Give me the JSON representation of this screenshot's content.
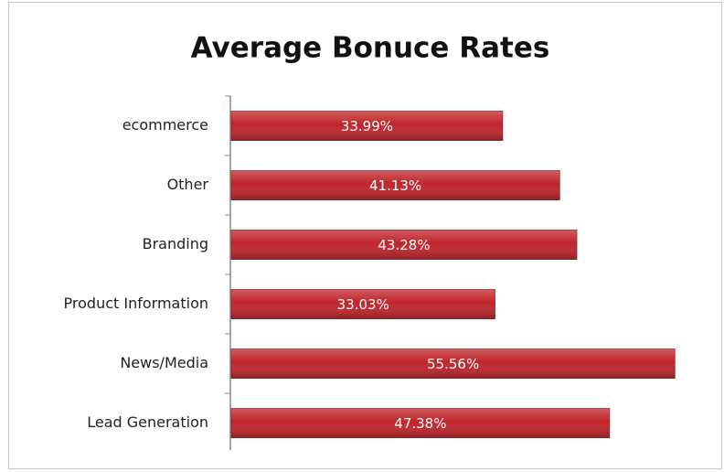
{
  "chart_data": {
    "type": "bar",
    "orientation": "horizontal",
    "title": "Average Bonuce Rates",
    "categories": [
      "ecommerce",
      "Other",
      "Branding",
      "Product Information",
      "News/Media",
      "Lead Generation"
    ],
    "values": [
      33.99,
      41.13,
      43.28,
      33.03,
      55.56,
      47.38
    ],
    "value_labels": [
      "33.99%",
      "41.13%",
      "43.28%",
      "33.03%",
      "55.56%",
      "47.38%"
    ],
    "color": "#c0252b",
    "xlim": [
      0,
      60
    ]
  }
}
